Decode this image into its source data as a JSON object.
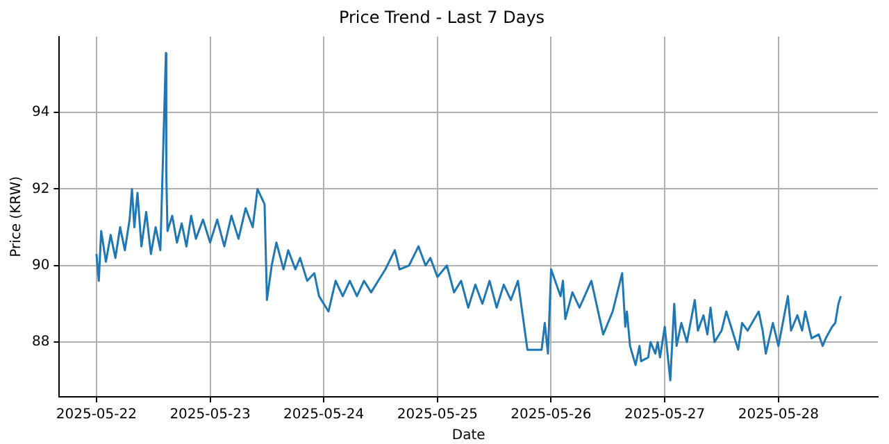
{
  "chart_data": {
    "type": "line",
    "title": "Price Trend - Last 7 Days",
    "xlabel": "Date",
    "ylabel": "Price (KRW)",
    "xlim": [
      "2025-05-21T16:10",
      "2025-05-28T21:00"
    ],
    "xticks": [
      "2025-05-22",
      "2025-05-23",
      "2025-05-24",
      "2025-05-25",
      "2025-05-26",
      "2025-05-27",
      "2025-05-28"
    ],
    "ylim": [
      86.57,
      95.98
    ],
    "yticks": [
      88,
      90,
      92,
      94
    ],
    "grid": true,
    "legend": false,
    "marker": "none",
    "line_style": "solid",
    "series": [
      {
        "color": "#1f77b4",
        "x": [
          "2025-05-22T00:00",
          "2025-05-22T00:30",
          "2025-05-22T01:00",
          "2025-05-22T02:00",
          "2025-05-22T03:00",
          "2025-05-22T04:00",
          "2025-05-22T05:00",
          "2025-05-22T06:00",
          "2025-05-22T07:00",
          "2025-05-22T07:30",
          "2025-05-22T08:00",
          "2025-05-22T08:40",
          "2025-05-22T09:30",
          "2025-05-22T10:30",
          "2025-05-22T11:30",
          "2025-05-22T12:30",
          "2025-05-22T13:30",
          "2025-05-22T14:40",
          "2025-05-22T14:45",
          "2025-05-22T15:00",
          "2025-05-22T16:00",
          "2025-05-22T17:00",
          "2025-05-22T18:00",
          "2025-05-22T19:00",
          "2025-05-22T20:00",
          "2025-05-22T21:00",
          "2025-05-22T22:30",
          "2025-05-23T00:00",
          "2025-05-23T01:30",
          "2025-05-23T03:00",
          "2025-05-23T04:30",
          "2025-05-23T06:00",
          "2025-05-23T07:30",
          "2025-05-23T09:00",
          "2025-05-23T10:00",
          "2025-05-23T11:30",
          "2025-05-23T12:00",
          "2025-05-23T13:00",
          "2025-05-23T14:00",
          "2025-05-23T15:30",
          "2025-05-23T16:30",
          "2025-05-23T18:00",
          "2025-05-23T19:00",
          "2025-05-23T20:30",
          "2025-05-23T22:00",
          "2025-05-23T23:00",
          "2025-05-24T01:00",
          "2025-05-24T02:30",
          "2025-05-24T04:00",
          "2025-05-24T05:30",
          "2025-05-24T07:00",
          "2025-05-24T08:30",
          "2025-05-24T10:00",
          "2025-05-24T11:30",
          "2025-05-24T13:00",
          "2025-05-24T15:00",
          "2025-05-24T16:00",
          "2025-05-24T18:00",
          "2025-05-24T20:00",
          "2025-05-24T21:30",
          "2025-05-24T22:30",
          "2025-05-25T00:00",
          "2025-05-25T02:00",
          "2025-05-25T03:30",
          "2025-05-25T05:00",
          "2025-05-25T06:30",
          "2025-05-25T08:00",
          "2025-05-25T09:30",
          "2025-05-25T11:00",
          "2025-05-25T12:30",
          "2025-05-25T14:00",
          "2025-05-25T15:30",
          "2025-05-25T17:00",
          "2025-05-25T18:00",
          "2025-05-25T19:00",
          "2025-05-25T22:00",
          "2025-05-25T22:40",
          "2025-05-25T23:20",
          "2025-05-26T00:00",
          "2025-05-26T02:00",
          "2025-05-26T02:30",
          "2025-05-26T03:00",
          "2025-05-26T04:30",
          "2025-05-26T06:00",
          "2025-05-26T08:30",
          "2025-05-26T11:00",
          "2025-05-26T13:00",
          "2025-05-26T15:00",
          "2025-05-26T15:40",
          "2025-05-26T16:00",
          "2025-05-26T16:40",
          "2025-05-26T17:50",
          "2025-05-26T18:40",
          "2025-05-26T19:00",
          "2025-05-26T20:30",
          "2025-05-26T21:00",
          "2025-05-26T22:00",
          "2025-05-26T22:30",
          "2025-05-26T23:00",
          "2025-05-27T00:00",
          "2025-05-27T01:10",
          "2025-05-27T02:00",
          "2025-05-27T02:30",
          "2025-05-27T03:30",
          "2025-05-27T04:40",
          "2025-05-27T06:20",
          "2025-05-27T07:00",
          "2025-05-27T08:10",
          "2025-05-27T09:00",
          "2025-05-27T09:40",
          "2025-05-27T10:30",
          "2025-05-27T12:00",
          "2025-05-27T13:00",
          "2025-05-27T14:00",
          "2025-05-27T15:30",
          "2025-05-27T16:20",
          "2025-05-27T17:30",
          "2025-05-27T19:50",
          "2025-05-27T20:40",
          "2025-05-27T21:20",
          "2025-05-27T22:50",
          "2025-05-28T00:00",
          "2025-05-28T02:00",
          "2025-05-28T02:40",
          "2025-05-28T04:00",
          "2025-05-28T05:00",
          "2025-05-28T05:40",
          "2025-05-28T07:00",
          "2025-05-28T08:30",
          "2025-05-28T09:20",
          "2025-05-28T10:00",
          "2025-05-28T11:20",
          "2025-05-28T12:00",
          "2025-05-28T12:40",
          "2025-05-28T13:10"
        ],
        "values": [
          90.3,
          89.6,
          90.9,
          90.1,
          90.8,
          90.2,
          91.0,
          90.4,
          91.2,
          92.0,
          91.0,
          91.9,
          90.5,
          91.4,
          90.3,
          91.0,
          90.4,
          95.55,
          92.4,
          90.9,
          91.3,
          90.6,
          91.1,
          90.5,
          91.3,
          90.7,
          91.2,
          90.6,
          91.2,
          90.5,
          91.3,
          90.7,
          91.5,
          91.0,
          92.0,
          91.6,
          89.1,
          90.0,
          90.6,
          89.9,
          90.4,
          89.9,
          90.2,
          89.6,
          89.8,
          89.2,
          88.8,
          89.6,
          89.2,
          89.6,
          89.2,
          89.6,
          89.3,
          89.6,
          89.9,
          90.4,
          89.9,
          90.0,
          90.5,
          90.0,
          90.2,
          89.7,
          90.0,
          89.3,
          89.6,
          88.9,
          89.5,
          89.0,
          89.6,
          88.9,
          89.5,
          89.1,
          89.6,
          88.7,
          87.8,
          87.8,
          88.5,
          87.7,
          89.9,
          89.2,
          89.6,
          88.6,
          89.3,
          88.9,
          89.6,
          88.2,
          88.8,
          89.8,
          88.4,
          88.8,
          87.9,
          87.4,
          87.9,
          87.5,
          87.6,
          88.0,
          87.7,
          88.0,
          87.6,
          88.4,
          87.0,
          89.0,
          87.9,
          88.5,
          88.0,
          89.1,
          88.3,
          88.7,
          88.2,
          88.9,
          88.0,
          88.3,
          88.8,
          88.4,
          87.8,
          88.5,
          88.3,
          88.8,
          88.3,
          87.7,
          88.5,
          87.9,
          89.2,
          88.3,
          88.7,
          88.3,
          88.8,
          88.1,
          88.2,
          87.9,
          88.1,
          88.4,
          88.5,
          89.0,
          89.2
        ]
      }
    ]
  }
}
